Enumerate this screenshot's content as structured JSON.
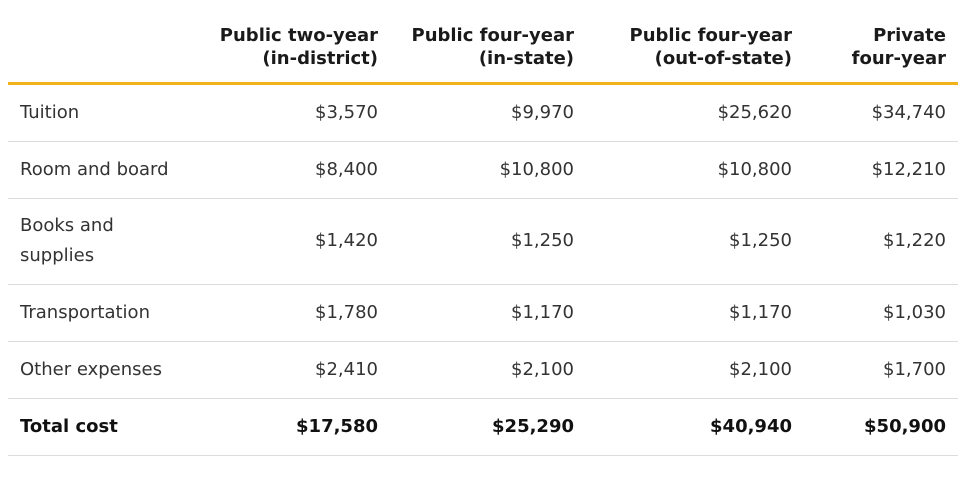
{
  "header": {
    "columns": [
      {
        "line1": "",
        "line2": ""
      },
      {
        "line1": "Public two-year",
        "line2": "(in-district)"
      },
      {
        "line1": "Public four-year",
        "line2": "(in-state)"
      },
      {
        "line1": "Public four-year",
        "line2": "(out-of-state)"
      },
      {
        "line1": "Private",
        "line2": "four-year"
      }
    ]
  },
  "rows": [
    {
      "label": "Tuition",
      "values": [
        "$3,570",
        "$9,970",
        "$25,620",
        "$34,740"
      ]
    },
    {
      "label": "Room and board",
      "values": [
        "$8,400",
        "$10,800",
        "$10,800",
        "$12,210"
      ]
    },
    {
      "label": "Books and supplies",
      "values": [
        "$1,420",
        "$1,250",
        "$1,250",
        "$1,220"
      ]
    },
    {
      "label": "Transportation",
      "values": [
        "$1,780",
        "$1,170",
        "$1,170",
        "$1,030"
      ]
    },
    {
      "label": "Other expenses",
      "values": [
        "$2,410",
        "$2,100",
        "$2,100",
        "$1,700"
      ]
    },
    {
      "label": "Total cost",
      "values": [
        "$17,580",
        "$25,290",
        "$40,940",
        "$50,900"
      ]
    }
  ],
  "colors": {
    "header_rule": "#f2b21b",
    "row_divider": "#dcdcdc"
  }
}
